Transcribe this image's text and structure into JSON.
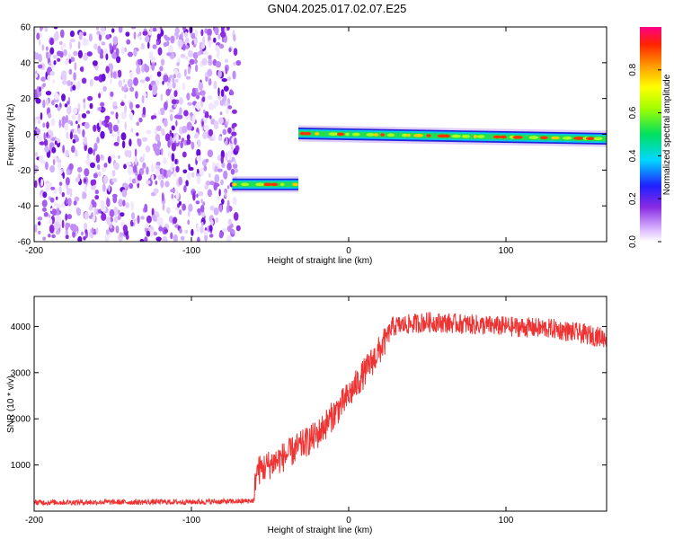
{
  "title": "GN04.2025.017.02.07.E25",
  "colors": {
    "snr_line": "#ee3333",
    "axis": "#000000"
  },
  "chart_data": [
    {
      "type": "heatmap",
      "xlabel": "Height of straight line (km)",
      "ylabel": "Frequency (Hz)",
      "xlim": [
        -200,
        164
      ],
      "ylim": [
        -60,
        60
      ],
      "xticks": [
        "-200",
        "-100",
        "0",
        "100"
      ],
      "yticks": [
        "-60",
        "-40",
        "-20",
        "0",
        "20",
        "40",
        "60"
      ],
      "colorbar": {
        "label": "Normalized spectral amplitude",
        "range": [
          0,
          1
        ],
        "ticks": [
          "0.0",
          "0.2",
          "0.4",
          "0.6",
          "0.8"
        ]
      },
      "regions": [
        {
          "desc": "broadband noise",
          "x": [
            -200,
            -70
          ],
          "freq": [
            -60,
            60
          ],
          "amplitude": 0.2
        },
        {
          "desc": "tone segment 1",
          "x": [
            -74,
            -32
          ],
          "freq": -28,
          "amplitude": 0.8
        },
        {
          "desc": "tone segment 2",
          "x": [
            -32,
            164
          ],
          "freq_start": 0.5,
          "freq_end": -2.5,
          "amplitude": 0.9
        }
      ]
    },
    {
      "type": "line",
      "xlabel": "Height of straight line (km)",
      "ylabel": "SNR (10 * v/v)",
      "xlim": [
        -200,
        164
      ],
      "ylim": [
        0,
        4650
      ],
      "xticks": [
        "-200",
        "-100",
        "0",
        "100"
      ],
      "yticks": [
        "1000",
        "2000",
        "3000",
        "4000"
      ],
      "series": [
        {
          "x": [
            -200,
            -150,
            -100,
            -70,
            -60,
            -59,
            -40,
            -20,
            0,
            20,
            28,
            50,
            100,
            130,
            164
          ],
          "values": [
            190,
            195,
            200,
            210,
            230,
            850,
            1200,
            1650,
            2500,
            3500,
            4000,
            4100,
            4000,
            3950,
            3750
          ]
        }
      ]
    }
  ]
}
